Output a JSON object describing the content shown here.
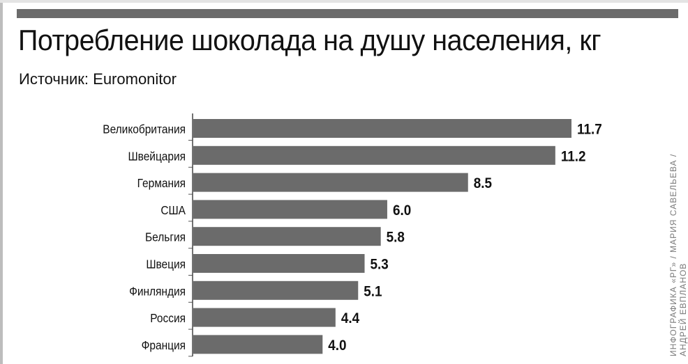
{
  "title": "Потребление шоколада на душу населения, кг",
  "source": "Источник: Euromonitor",
  "credit": {
    "line1": "ИНФОГРАФИКА «РГ» / МАРИЯ САВЕЛЬЕВА /",
    "line2": "АНДРЕЙ ЕВПЛАНОВ"
  },
  "colors": {
    "bar": "#6b6b6b",
    "rule": "#6b6b6b",
    "text": "#111111"
  },
  "chart_data": {
    "type": "bar",
    "orientation": "horizontal",
    "title": "Потребление шоколада на душу населения, кг",
    "subtitle": "Источник: Euromonitor",
    "categories": [
      "Великобритания",
      "Швейцария",
      "Германия",
      "США",
      "Бельгия",
      "Швеция",
      "Финляндия",
      "Россия",
      "Франция"
    ],
    "values": [
      11.7,
      11.2,
      8.5,
      6.0,
      5.8,
      5.3,
      5.1,
      4.4,
      4.0
    ],
    "value_labels": [
      "11.7",
      "11.2",
      "8.5",
      "6.0",
      "5.8",
      "5.3",
      "5.1",
      "4.4",
      "4.0"
    ],
    "xlim": [
      0,
      11.7
    ],
    "grid": false,
    "legend": "none"
  }
}
